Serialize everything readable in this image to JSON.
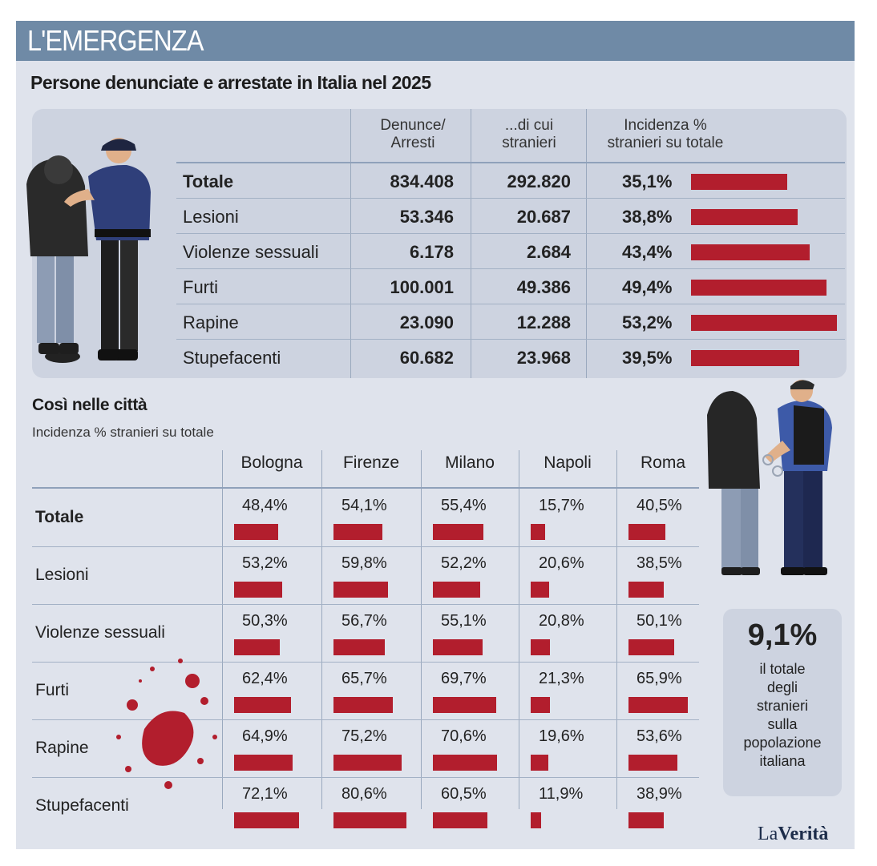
{
  "header": {
    "title": "L'EMERGENZA"
  },
  "subtitle": "Persone denunciate e arrestate in Italia nel 2025",
  "table1": {
    "col1_line1": "Denunce/",
    "col1_line2": "Arresti",
    "col2_line1": "...di cui",
    "col2_line2": "stranieri",
    "col3_line1": "Incidenza %",
    "col3_line2": "stranieri su totale",
    "rows": [
      {
        "label": "Totale",
        "denunce": "834.408",
        "stranieri": "292.820",
        "pct_label": "35,1%",
        "pct": 35.1
      },
      {
        "label": "Lesioni",
        "denunce": "53.346",
        "stranieri": "20.687",
        "pct_label": "38,8%",
        "pct": 38.8
      },
      {
        "label": "Violenze sessuali",
        "denunce": "6.178",
        "stranieri": "2.684",
        "pct_label": "43,4%",
        "pct": 43.4
      },
      {
        "label": "Furti",
        "denunce": "100.001",
        "stranieri": "49.386",
        "pct_label": "49,4%",
        "pct": 49.4
      },
      {
        "label": "Rapine",
        "denunce": "23.090",
        "stranieri": "12.288",
        "pct_label": "53,2%",
        "pct": 53.2
      },
      {
        "label": "Stupefacenti",
        "denunce": "60.682",
        "stranieri": "23.968",
        "pct_label": "39,5%",
        "pct": 39.5
      }
    ]
  },
  "section2": {
    "title": "Così nelle città",
    "subtitle": "Incidenza % stranieri su totale"
  },
  "chart_data": {
    "type": "table",
    "categories": [
      "Bologna",
      "Firenze",
      "Milano",
      "Napoli",
      "Roma"
    ],
    "rows": [
      {
        "label": "Totale",
        "values": [
          48.4,
          54.1,
          55.4,
          15.7,
          40.5
        ],
        "labels": [
          "48,4%",
          "54,1%",
          "55,4%",
          "15,7%",
          "40,5%"
        ]
      },
      {
        "label": "Lesioni",
        "values": [
          53.2,
          59.8,
          52.2,
          20.6,
          38.5
        ],
        "labels": [
          "53,2%",
          "59,8%",
          "52,2%",
          "20,6%",
          "38,5%"
        ]
      },
      {
        "label": "Violenze sessuali",
        "values": [
          50.3,
          56.7,
          55.1,
          20.8,
          50.1
        ],
        "labels": [
          "50,3%",
          "56,7%",
          "55,1%",
          "20,8%",
          "50,1%"
        ]
      },
      {
        "label": "Furti",
        "values": [
          62.4,
          65.7,
          69.7,
          21.3,
          65.9
        ],
        "labels": [
          "62,4%",
          "65,7%",
          "69,7%",
          "21,3%",
          "65,9%"
        ]
      },
      {
        "label": "Rapine",
        "values": [
          64.9,
          75.2,
          70.6,
          19.6,
          53.6
        ],
        "labels": [
          "64,9%",
          "75,2%",
          "70,6%",
          "19,6%",
          "53,6%"
        ]
      },
      {
        "label": "Stupefacenti",
        "values": [
          72.1,
          80.6,
          60.5,
          11.9,
          38.9
        ],
        "labels": [
          "72,1%",
          "80,6%",
          "60,5%",
          "11,9%",
          "38,9%"
        ]
      }
    ]
  },
  "info": {
    "value": "9,1%",
    "text_lines": [
      "il totale",
      "degli",
      "stranieri",
      "sulla",
      "popolazione",
      "italiana"
    ]
  },
  "logo": {
    "part1": "La",
    "part2": "Verità"
  },
  "colors": {
    "header": "#6f8aa6",
    "bar": "#b21e2d",
    "panel": "#dfe3ec",
    "box": "#cdd3e0"
  }
}
